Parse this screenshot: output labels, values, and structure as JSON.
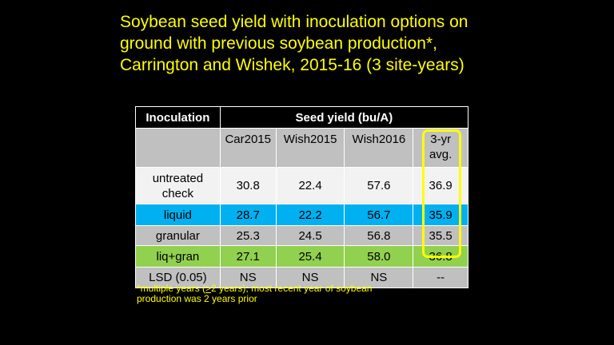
{
  "title": {
    "line1": "Soybean seed yield with inoculation options on",
    "line2": "ground with previous soybean production*,",
    "line3": "Carrington and Wishek, 2015-16 (3 site-years)"
  },
  "table": {
    "col_header_inoculation": "Inoculation",
    "col_header_yield": "Seed yield (bu/A)",
    "sub_headers": [
      "Car2015",
      "Wish2015",
      "Wish2016"
    ],
    "avg_header_line1": "3-yr",
    "avg_header_line2": "avg.",
    "rows": [
      {
        "label_line1": "untreated",
        "label_line2": "check",
        "values": [
          "30.8",
          "22.4",
          "57.6",
          "36.9"
        ],
        "color": "#f2f2f2"
      },
      {
        "label_line1": "liquid",
        "label_line2": "",
        "values": [
          "28.7",
          "22.2",
          "56.7",
          "35.9"
        ],
        "color": "#00b0f0"
      },
      {
        "label_line1": "granular",
        "label_line2": "",
        "values": [
          "25.3",
          "24.5",
          "56.8",
          "35.5"
        ],
        "color": "#c0c0c0"
      },
      {
        "label_line1": "liq+gran",
        "label_line2": "",
        "values": [
          "27.1",
          "25.4",
          "58.0",
          "36.8"
        ],
        "color": "#92d050"
      },
      {
        "label_line1": "LSD (0.05)",
        "label_line2": "",
        "values": [
          "NS",
          "NS",
          "NS",
          "--"
        ],
        "color": "#c0c0c0"
      }
    ]
  },
  "footnote": {
    "line1_prefix": "*multiple years (",
    "line1_underlined": ">",
    "line1_suffix": "2 years); most recent year of soybean",
    "line2": "production was 2 years prior"
  },
  "colors": {
    "background": "#000000",
    "title_text": "#ffff00",
    "highlight_box": "#ffff00"
  }
}
